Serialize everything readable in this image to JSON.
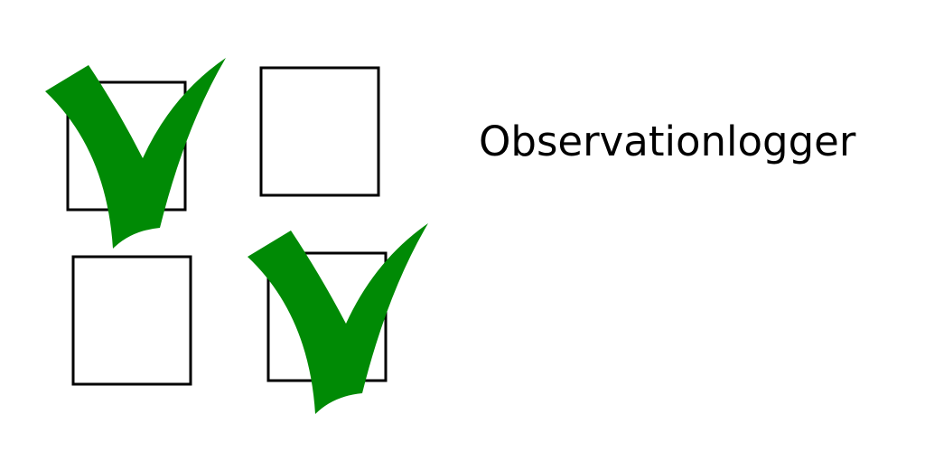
{
  "banner": {
    "title": "Observationlogger"
  },
  "checkboxes": [
    {
      "checked": true
    },
    {
      "checked": false
    },
    {
      "checked": false
    },
    {
      "checked": true
    }
  ],
  "colors": {
    "checkmark": "#008a05",
    "box_stroke": "#000000",
    "background": "#ffffff"
  },
  "icons": {
    "checkmark": "checkmark-icon",
    "checkbox": "checkbox-icon"
  }
}
